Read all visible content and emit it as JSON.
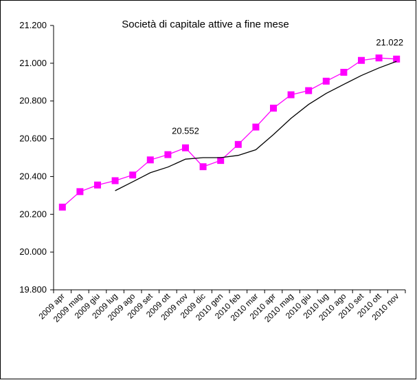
{
  "chart_data": {
    "type": "line",
    "title": "Società di capitale attive a fine mese",
    "categories": [
      "2009 apr",
      "2009 mag",
      "2009 giu",
      "2009 lug",
      "2009 ago",
      "2009 set",
      "2009 ott",
      "2009 nov",
      "2009 dic",
      "2010 gen",
      "2010 feb",
      "2010 mar",
      "2010 apr",
      "2010 mag",
      "2010 giu",
      "2010 lug",
      "2010 ago",
      "2010 set",
      "2010 ott",
      "2010 nov"
    ],
    "y_ticks": [
      "19.800",
      "20.000",
      "20.200",
      "20.400",
      "20.600",
      "20.800",
      "21.000",
      "21.200"
    ],
    "ylim": [
      19800,
      21200
    ],
    "grid": false,
    "legend": "none",
    "series": [
      {
        "values": [
          20238,
          20320,
          20355,
          20378,
          20408,
          20488,
          20516,
          20552,
          20452,
          20485,
          20570,
          20662,
          20762,
          20833,
          20855,
          20905,
          20952,
          21015,
          21028,
          21022
        ],
        "color": "#ff00ff",
        "marker": "square"
      },
      {
        "values": [
          null,
          null,
          null,
          20325,
          20372,
          20420,
          20450,
          20492,
          20500,
          20500,
          20512,
          20542,
          20622,
          20708,
          20782,
          20840,
          20888,
          20935,
          20975,
          21010
        ],
        "color": "#000000",
        "marker": "none"
      }
    ],
    "data_labels": [
      {
        "series": 0,
        "index": 7,
        "text": "20.552"
      },
      {
        "series": 0,
        "index": 19,
        "text": "21.022"
      }
    ]
  }
}
